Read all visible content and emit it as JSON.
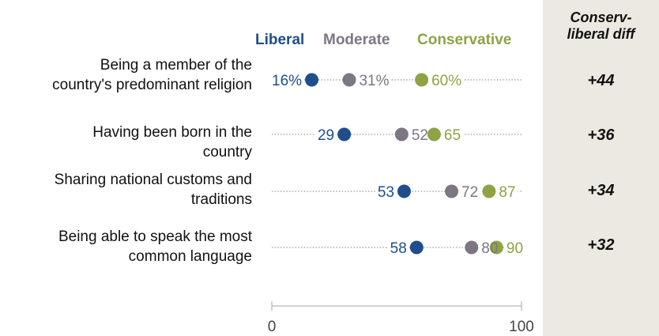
{
  "chart_data": {
    "type": "dot",
    "xlim": [
      0,
      100
    ],
    "tick_labels": [
      "0",
      "100"
    ],
    "legend": [
      {
        "name": "Liberal",
        "color": "#1f4e8c"
      },
      {
        "name": "Moderate",
        "color": "#7d7683"
      },
      {
        "name": "Conservative",
        "color": "#8fa245"
      }
    ],
    "diff_header": "Conserv-liberal diff",
    "categories": [
      "Being a member of the country's predominant religion",
      "Having been born in the country",
      "Sharing national customs and traditions",
      "Being able to speak the most common language"
    ],
    "label_lines": [
      [
        "Being a member of the",
        "country's predominant religion"
      ],
      [
        "Having been born in the",
        "country"
      ],
      [
        "Sharing national customs and",
        "traditions"
      ],
      [
        "Being able to speak the most",
        "common language"
      ]
    ],
    "series": [
      {
        "name": "Liberal",
        "values": [
          16,
          29,
          53,
          58
        ],
        "labels": [
          "16%",
          "29",
          "53",
          "58"
        ]
      },
      {
        "name": "Moderate",
        "values": [
          31,
          52,
          72,
          80
        ],
        "labels": [
          "31%",
          "52",
          "72",
          "80"
        ]
      },
      {
        "name": "Conservative",
        "values": [
          60,
          65,
          87,
          90
        ],
        "labels": [
          "60%",
          "65",
          "87",
          "90"
        ]
      }
    ],
    "diff": [
      "+44",
      "+36",
      "+34",
      "+32"
    ]
  }
}
